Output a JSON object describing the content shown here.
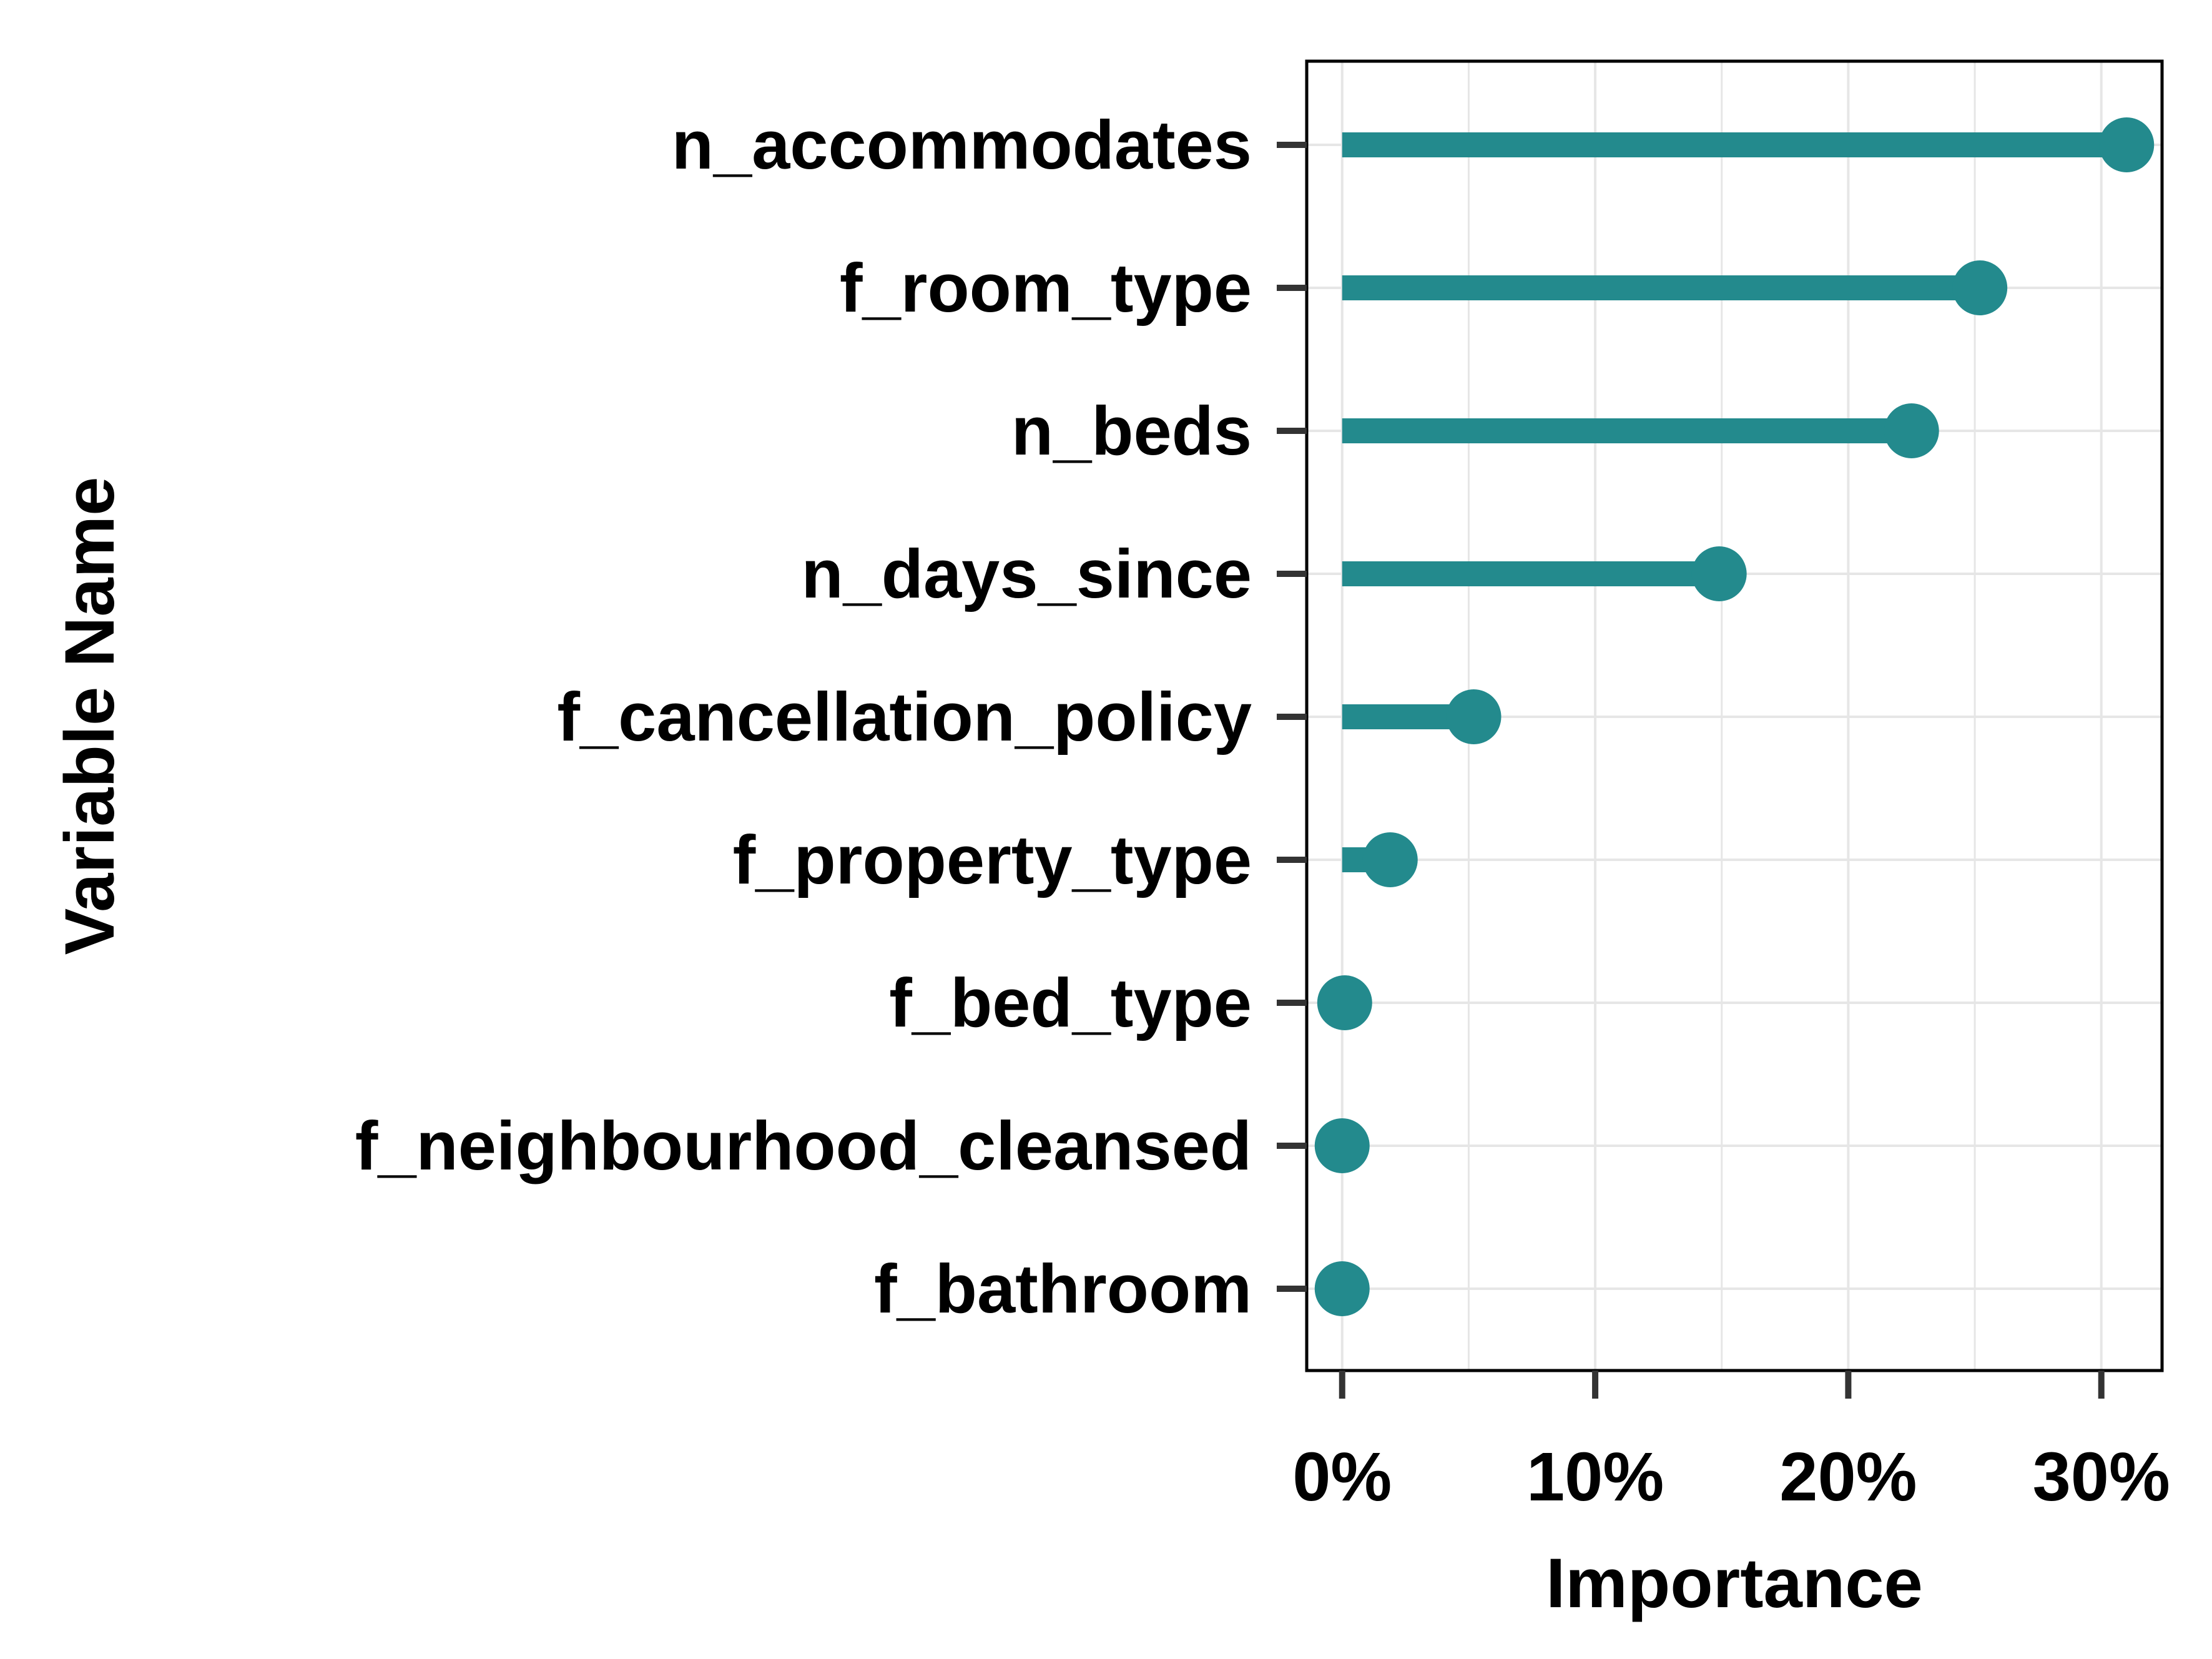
{
  "chart_data": {
    "type": "lollipop",
    "orientation": "horizontal",
    "title": "",
    "xlabel": "Importance",
    "ylabel": "Variable Name",
    "categories": [
      "n_accommodates",
      "f_room_type",
      "n_beds",
      "n_days_since",
      "f_cancellation_policy",
      "f_property_type",
      "f_bed_type",
      "f_neighbourhood_cleansed",
      "f_bathroom"
    ],
    "values": [
      0.31,
      0.252,
      0.225,
      0.149,
      0.052,
      0.019,
      0.001,
      0.0,
      0.0
    ],
    "xlim": [
      -0.014,
      0.324
    ],
    "xticks": [
      0,
      0.1,
      0.2,
      0.3
    ],
    "xtick_labels": [
      "0%",
      "10%",
      "20%",
      "30%"
    ],
    "grid": true,
    "legend": "none",
    "colors": {
      "mark": "#238a8d",
      "grid": "#e6e6e6",
      "frame": "#000000",
      "tick": "#333333"
    }
  }
}
